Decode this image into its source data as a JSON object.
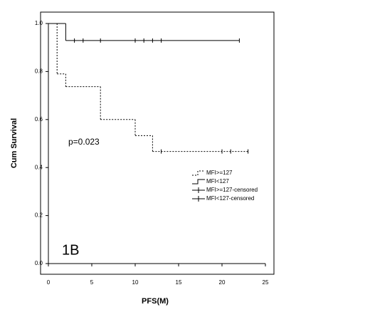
{
  "chart_data": {
    "type": "step",
    "xlabel": "PFS(M)",
    "ylabel": "Cum Survival",
    "annotations": [
      "p=0.023",
      "1B"
    ],
    "xlim": [
      0,
      25
    ],
    "xticks": [
      0,
      5,
      10,
      15,
      20,
      25
    ],
    "ylim": [
      0,
      1
    ],
    "yticks": [
      {
        "value": 0,
        "label": "0.0"
      },
      {
        "value": 0.2,
        "label": "0.2"
      },
      {
        "value": 0.4,
        "label": "0.4"
      },
      {
        "value": 0.6,
        "label": "0.6"
      },
      {
        "value": 0.8,
        "label": "0.8"
      },
      {
        "value": 1,
        "label": "1.0"
      }
    ],
    "series": [
      {
        "name": "MFI>=127",
        "color": "#000000",
        "line_style": "dashed",
        "x": [
          0,
          1,
          2,
          6,
          10,
          12,
          23
        ],
        "values": [
          1,
          0.79,
          0.737,
          0.6,
          0.533,
          0.467,
          0.467
        ]
      },
      {
        "name": "MFI<127",
        "color": "#000000",
        "line_style": "solid",
        "x": [
          0,
          2,
          22
        ],
        "values": [
          1,
          0.929,
          0.929
        ]
      },
      {
        "name": "MFI>=127-censored",
        "color": "#000000",
        "marker": "+",
        "x": [
          13,
          20,
          21,
          23
        ],
        "values": [
          0.467,
          0.467,
          0.467,
          0.467
        ]
      },
      {
        "name": "MFI<127-censored",
        "color": "#000000",
        "marker": "+",
        "x": [
          3,
          4,
          6,
          10,
          11,
          12,
          13,
          22
        ],
        "values": [
          0.929,
          0.929,
          0.929,
          0.929,
          0.929,
          0.929,
          0.929,
          0.929
        ]
      }
    ]
  }
}
